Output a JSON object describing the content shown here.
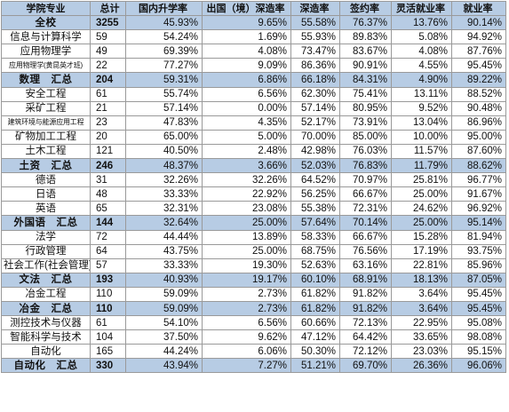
{
  "headers": [
    "学院专业",
    "总计",
    "国内升学率",
    "出国（境）深造率",
    "深造率",
    "签约率",
    "灵活就业率",
    "就业率"
  ],
  "rows": [
    {
      "name": "全校",
      "total": "3255",
      "domestic": "45.93%",
      "abroad": "9.65%",
      "further": "55.58%",
      "signed": "76.37%",
      "flexible": "13.76%",
      "employment": "90.14%",
      "type": "total"
    },
    {
      "name": "信息与计算科学",
      "total": "59",
      "domestic": "54.24%",
      "abroad": "1.69%",
      "further": "55.93%",
      "signed": "89.83%",
      "flexible": "5.08%",
      "employment": "94.92%",
      "type": "major"
    },
    {
      "name": "应用物理学",
      "total": "49",
      "domestic": "69.39%",
      "abroad": "4.08%",
      "further": "73.47%",
      "signed": "83.67%",
      "flexible": "4.08%",
      "employment": "87.76%",
      "type": "major"
    },
    {
      "name": "应用物理学(黄昆英才班)",
      "total": "22",
      "domestic": "77.27%",
      "abroad": "9.09%",
      "further": "86.36%",
      "signed": "90.91%",
      "flexible": "4.55%",
      "employment": "95.45%",
      "type": "major-small"
    },
    {
      "name": "数理　汇总",
      "total": "204",
      "domestic": "59.31%",
      "abroad": "6.86%",
      "further": "66.18%",
      "signed": "84.31%",
      "flexible": "4.90%",
      "employment": "89.22%",
      "type": "total"
    },
    {
      "name": "安全工程",
      "total": "61",
      "domestic": "55.74%",
      "abroad": "6.56%",
      "further": "62.30%",
      "signed": "75.41%",
      "flexible": "13.11%",
      "employment": "88.52%",
      "type": "major"
    },
    {
      "name": "采矿工程",
      "total": "21",
      "domestic": "57.14%",
      "abroad": "0.00%",
      "further": "57.14%",
      "signed": "80.95%",
      "flexible": "9.52%",
      "employment": "90.48%",
      "type": "major"
    },
    {
      "name": "建筑环境与能源应用工程",
      "total": "23",
      "domestic": "47.83%",
      "abroad": "4.35%",
      "further": "52.17%",
      "signed": "73.91%",
      "flexible": "13.04%",
      "employment": "86.96%",
      "type": "major-small"
    },
    {
      "name": "矿物加工工程",
      "total": "20",
      "domestic": "65.00%",
      "abroad": "5.00%",
      "further": "70.00%",
      "signed": "85.00%",
      "flexible": "10.00%",
      "employment": "95.00%",
      "type": "major"
    },
    {
      "name": "土木工程",
      "total": "121",
      "domestic": "40.50%",
      "abroad": "2.48%",
      "further": "42.98%",
      "signed": "76.03%",
      "flexible": "11.57%",
      "employment": "87.60%",
      "type": "major"
    },
    {
      "name": "土资　汇总",
      "total": "246",
      "domestic": "48.37%",
      "abroad": "3.66%",
      "further": "52.03%",
      "signed": "76.83%",
      "flexible": "11.79%",
      "employment": "88.62%",
      "type": "total"
    },
    {
      "name": "德语",
      "total": "31",
      "domestic": "32.26%",
      "abroad": "32.26%",
      "further": "64.52%",
      "signed": "70.97%",
      "flexible": "25.81%",
      "employment": "96.77%",
      "type": "major"
    },
    {
      "name": "日语",
      "total": "48",
      "domestic": "33.33%",
      "abroad": "22.92%",
      "further": "56.25%",
      "signed": "66.67%",
      "flexible": "25.00%",
      "employment": "91.67%",
      "type": "major"
    },
    {
      "name": "英语",
      "total": "65",
      "domestic": "32.31%",
      "abroad": "23.08%",
      "further": "55.38%",
      "signed": "72.31%",
      "flexible": "24.62%",
      "employment": "96.92%",
      "type": "major"
    },
    {
      "name": "外国语　汇总",
      "total": "144",
      "domestic": "32.64%",
      "abroad": "25.00%",
      "further": "57.64%",
      "signed": "70.14%",
      "flexible": "25.00%",
      "employment": "95.14%",
      "type": "total"
    },
    {
      "name": "法学",
      "total": "72",
      "domestic": "44.44%",
      "abroad": "13.89%",
      "further": "58.33%",
      "signed": "66.67%",
      "flexible": "15.28%",
      "employment": "81.94%",
      "type": "major"
    },
    {
      "name": "行政管理",
      "total": "64",
      "domestic": "43.75%",
      "abroad": "25.00%",
      "further": "68.75%",
      "signed": "76.56%",
      "flexible": "17.19%",
      "employment": "93.75%",
      "type": "major"
    },
    {
      "name": "社会工作(社会管理)",
      "total": "57",
      "domestic": "33.33%",
      "abroad": "19.30%",
      "further": "52.63%",
      "signed": "63.16%",
      "flexible": "22.81%",
      "employment": "85.96%",
      "type": "major"
    },
    {
      "name": "文法　汇总",
      "total": "193",
      "domestic": "40.93%",
      "abroad": "19.17%",
      "further": "60.10%",
      "signed": "68.91%",
      "flexible": "18.13%",
      "employment": "87.05%",
      "type": "total"
    },
    {
      "name": "冶金工程",
      "total": "110",
      "domestic": "59.09%",
      "abroad": "2.73%",
      "further": "61.82%",
      "signed": "91.82%",
      "flexible": "3.64%",
      "employment": "95.45%",
      "type": "major"
    },
    {
      "name": "冶金　汇总",
      "total": "110",
      "domestic": "59.09%",
      "abroad": "2.73%",
      "further": "61.82%",
      "signed": "91.82%",
      "flexible": "3.64%",
      "employment": "95.45%",
      "type": "total"
    },
    {
      "name": "测控技术与仪器",
      "total": "61",
      "domestic": "54.10%",
      "abroad": "6.56%",
      "further": "60.66%",
      "signed": "72.13%",
      "flexible": "22.95%",
      "employment": "95.08%",
      "type": "major"
    },
    {
      "name": "智能科学与技术",
      "total": "104",
      "domestic": "37.50%",
      "abroad": "9.62%",
      "further": "47.12%",
      "signed": "64.42%",
      "flexible": "33.65%",
      "employment": "98.08%",
      "type": "major"
    },
    {
      "name": "自动化",
      "total": "165",
      "domestic": "44.24%",
      "abroad": "6.06%",
      "further": "50.30%",
      "signed": "72.12%",
      "flexible": "23.03%",
      "employment": "95.15%",
      "type": "major"
    },
    {
      "name": "自动化　汇总",
      "total": "330",
      "domestic": "43.94%",
      "abroad": "7.27%",
      "further": "51.21%",
      "signed": "69.70%",
      "flexible": "26.36%",
      "employment": "96.06%",
      "type": "total"
    }
  ]
}
